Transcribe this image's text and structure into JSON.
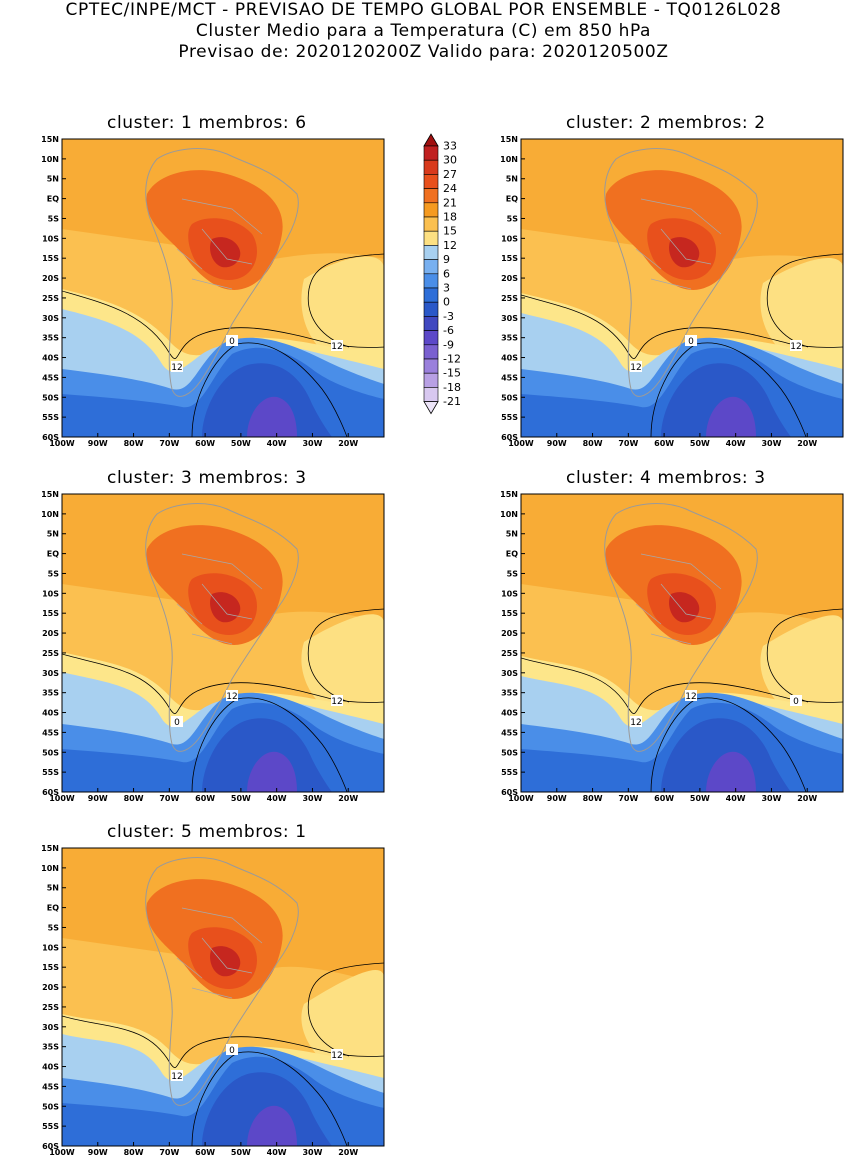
{
  "header": {
    "line1": "CPTEC/INPE/MCT - PREVISAO DE TEMPO GLOBAL POR ENSEMBLE - TQ0126L028",
    "line2": "Cluster Medio para a Temperatura (C) em 850 hPa",
    "line3": "Previsao de: 2020120200Z   Valido para: 2020120500Z"
  },
  "lat_labels": [
    "15N",
    "10N",
    "5N",
    "EQ",
    "5S",
    "10S",
    "15S",
    "20S",
    "25S",
    "30S",
    "35S",
    "40S",
    "45S",
    "50S",
    "55S",
    "60S"
  ],
  "lon_labels": [
    "100W",
    "90W",
    "80W",
    "70W",
    "60W",
    "50W",
    "40W",
    "30W",
    "20W"
  ],
  "colorbar": {
    "levels": [
      "33",
      "30",
      "27",
      "24",
      "21",
      "18",
      "15",
      "12",
      "9",
      "6",
      "3",
      "0",
      "-3",
      "-6",
      "-9",
      "-12",
      "-15",
      "-18",
      "-21"
    ],
    "colors": [
      "#a01010",
      "#c02020",
      "#d83a1c",
      "#e8501c",
      "#f07020",
      "#f59a20",
      "#fbc050",
      "#fde082",
      "#a8d0f0",
      "#78b0f0",
      "#4a8ee8",
      "#2e6ed8",
      "#2a58c8",
      "#4048c0",
      "#5c48c8",
      "#7a60d0",
      "#9a80dc",
      "#b8a0e4",
      "#d8c8f0"
    ],
    "bands": [
      "#a01010",
      "#c02020",
      "#d83a1c",
      "#e8501c",
      "#f07020",
      "#f59a20",
      "#fbc050",
      "#fde082",
      "#a8d0f0",
      "#78b0f0",
      "#4a8ee8",
      "#2e6ed8",
      "#2a58c8",
      "#4048c0",
      "#5c48c8",
      "#7a60d0",
      "#9a80dc",
      "#b8a0e4",
      "#d8c8f0",
      "#ece4f8"
    ]
  },
  "clusters": [
    {
      "id": "1",
      "title": "cluster: 1   membros: 6",
      "labels": [
        "0",
        "12",
        "12"
      ]
    },
    {
      "id": "2",
      "title": "cluster: 2   membros: 2",
      "labels": [
        "0",
        "12",
        "12"
      ]
    },
    {
      "id": "3",
      "title": "cluster: 3   membros: 3",
      "labels": [
        "12",
        "12",
        "0"
      ]
    },
    {
      "id": "4",
      "title": "cluster: 4   membros: 3",
      "labels": [
        "12",
        "0",
        "12"
      ]
    },
    {
      "id": "5",
      "title": "cluster: 5   membros: 1",
      "labels": [
        "0",
        "12",
        "12"
      ]
    }
  ]
}
